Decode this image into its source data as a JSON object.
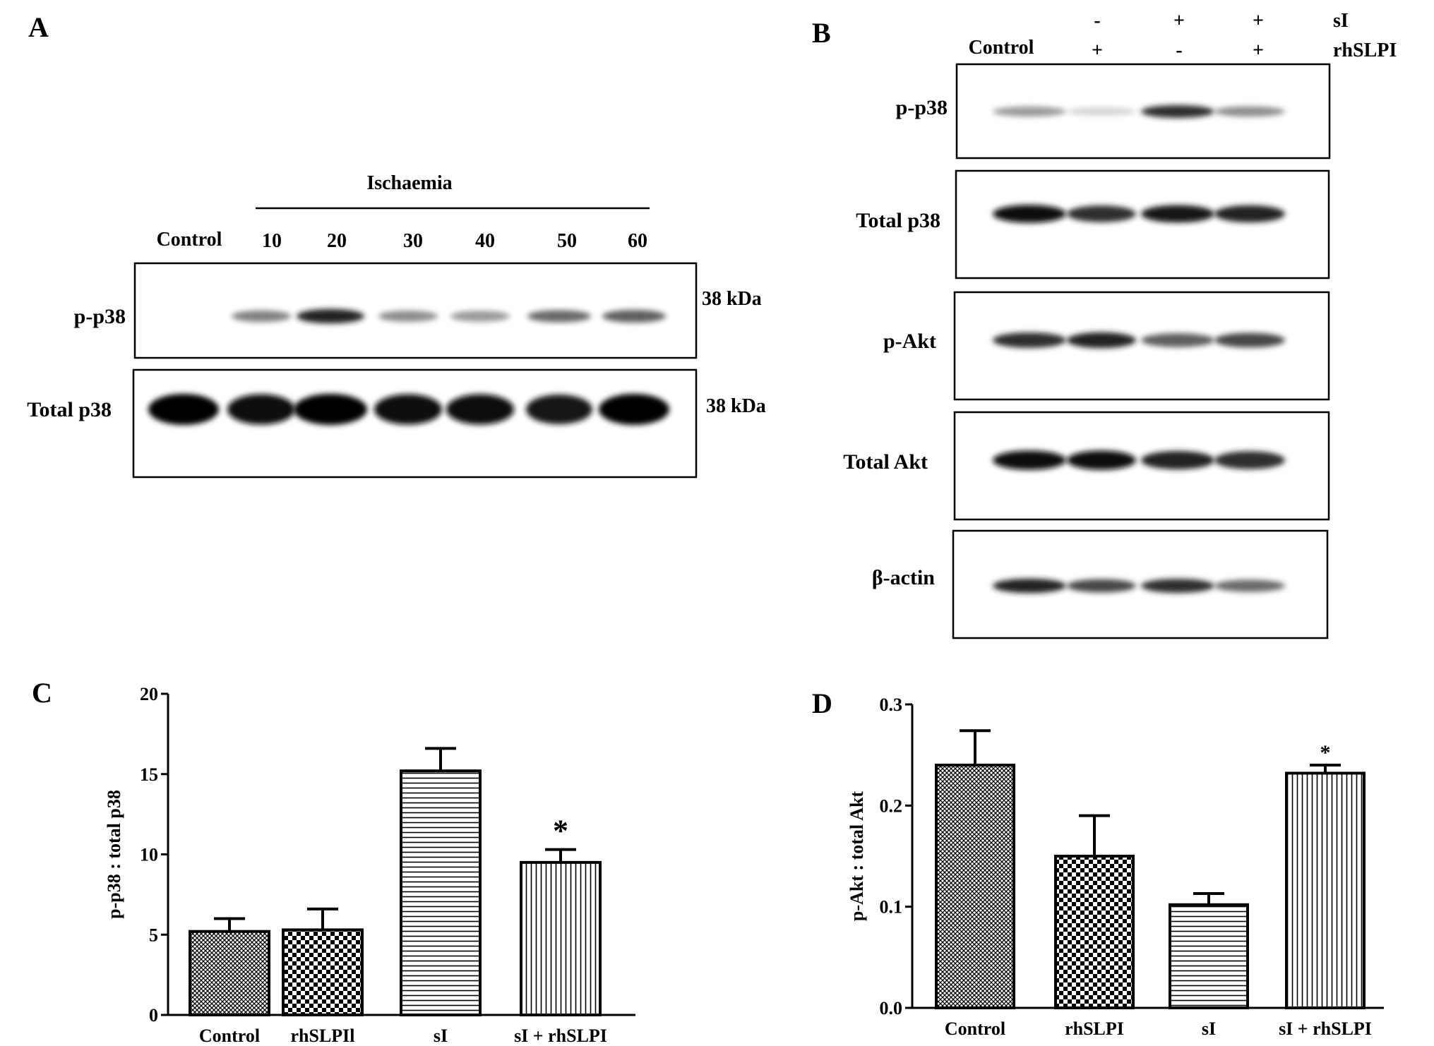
{
  "panels": {
    "a": {
      "letter": "A",
      "group_label": "Ischaemia",
      "lanes": [
        "Control",
        "10",
        "20",
        "30",
        "40",
        "50",
        "60"
      ],
      "rows": [
        {
          "label": "p-p38",
          "kda": "38 kDa"
        },
        {
          "label": "Total p38",
          "kda": "38 kDa"
        }
      ],
      "blot_intensity": {
        "p-p38": [
          0.0,
          0.45,
          0.85,
          0.4,
          0.35,
          0.55,
          0.6
        ],
        "Total p38": [
          1.0,
          0.95,
          1.0,
          0.95,
          0.95,
          0.9,
          1.0
        ]
      }
    },
    "b": {
      "letter": "B",
      "control_label": "Control",
      "factors": [
        {
          "name": "sI",
          "signs": [
            "-",
            "+",
            "+"
          ]
        },
        {
          "name": "rhSLPI",
          "signs": [
            "+",
            "-",
            "+"
          ]
        }
      ],
      "rows": [
        "p-p38",
        "Total p38",
        "p-Akt",
        "Total Akt",
        "β-actin"
      ],
      "blot_intensity": {
        "p-p38": [
          0.35,
          0.1,
          0.8,
          0.4
        ],
        "Total p38": [
          0.95,
          0.8,
          0.9,
          0.85
        ],
        "p-Akt": [
          0.8,
          0.85,
          0.6,
          0.7
        ],
        "Total Akt": [
          0.95,
          0.95,
          0.85,
          0.8
        ],
        "β-actin": [
          0.85,
          0.7,
          0.8,
          0.55
        ]
      }
    }
  },
  "chart_data": [
    {
      "panel": "C",
      "type": "bar",
      "categories": [
        "Control",
        "rhSLPIl",
        "sI",
        "sI + rhSLPI"
      ],
      "values": [
        5.2,
        5.3,
        15.2,
        9.5
      ],
      "errors": [
        0.8,
        1.3,
        1.4,
        0.8
      ],
      "significance": [
        "",
        "",
        "",
        "*"
      ],
      "patterns": [
        "crosshatch-fine",
        "checker",
        "horizontal",
        "vertical"
      ],
      "ylabel": "p-p38 : total p38",
      "ylim": [
        0,
        20
      ],
      "yticks": [
        "0",
        "5",
        "10",
        "15",
        "20"
      ]
    },
    {
      "panel": "D",
      "type": "bar",
      "categories": [
        "Control",
        "rhSLPI",
        "sI",
        "sI + rhSLPI"
      ],
      "values": [
        0.24,
        0.15,
        0.102,
        0.232
      ],
      "errors": [
        0.034,
        0.04,
        0.011,
        0.008
      ],
      "significance": [
        "",
        "",
        "",
        "*"
      ],
      "patterns": [
        "crosshatch-fine",
        "checker",
        "horizontal",
        "vertical"
      ],
      "ylabel": "p-Akt : total Akt",
      "ylim": [
        0,
        0.3
      ],
      "yticks": [
        "0.0",
        "0.1",
        "0.2",
        "0.3"
      ]
    }
  ]
}
